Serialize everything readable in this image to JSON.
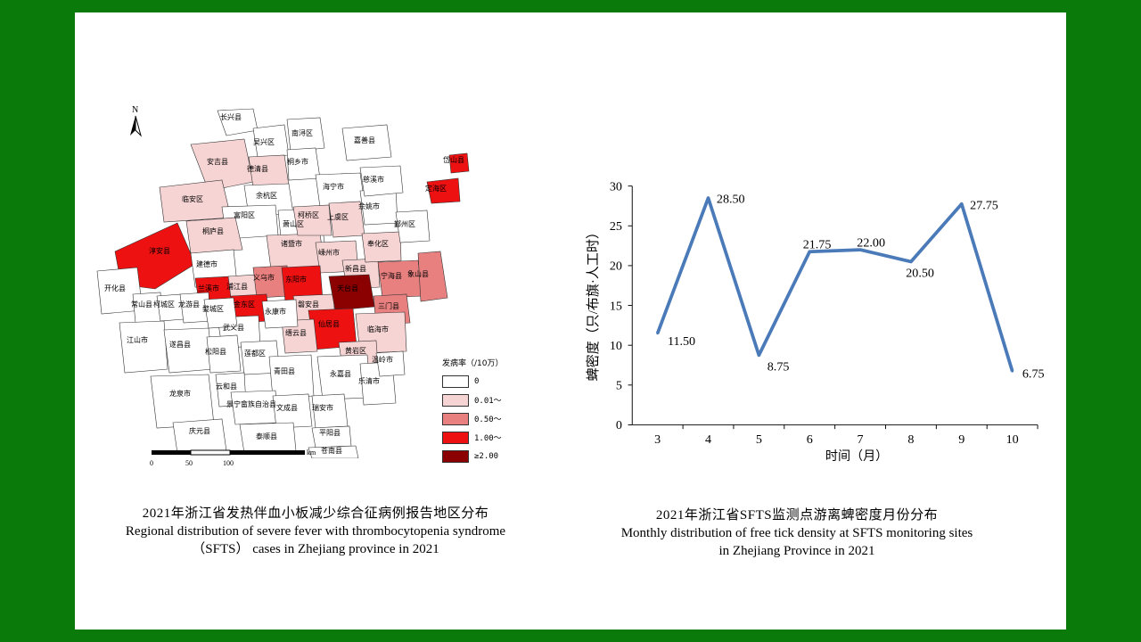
{
  "map": {
    "legend_title": "发病率（/10万）",
    "legend": [
      {
        "label": "0",
        "color": "#ffffff"
      },
      {
        "label": "0.01～",
        "color": "#f7d4d4"
      },
      {
        "label": "0.50～",
        "color": "#e88080"
      },
      {
        "label": "1.00～",
        "color": "#ee1111"
      },
      {
        "label": "≥2.00",
        "color": "#8b0000"
      }
    ],
    "scale_unit": "km",
    "scale_ticks": [
      "0",
      "50",
      "100"
    ],
    "north_label": "N",
    "caption_zh": "2021年浙江省发热伴血小板减少综合征病例报告地区分布",
    "caption_en": "Regional distribution of severe fever with thrombocytopenia syndrome\n（SFTS） cases in Zhejiang province in 2021",
    "regions": [
      {
        "name": "长兴县",
        "rate": "0"
      },
      {
        "name": "吴兴区",
        "rate": "0"
      },
      {
        "name": "南浔区",
        "rate": "0"
      },
      {
        "name": "嘉善县",
        "rate": "0"
      },
      {
        "name": "安吉县",
        "rate": "0.01～"
      },
      {
        "name": "德清县",
        "rate": "0.01～"
      },
      {
        "name": "桐乡市",
        "rate": "0"
      },
      {
        "name": "海宁市",
        "rate": "0"
      },
      {
        "name": "临安区",
        "rate": "0.01～"
      },
      {
        "name": "余杭区",
        "rate": "0"
      },
      {
        "name": "富阳区",
        "rate": "0"
      },
      {
        "name": "萧山区",
        "rate": "0"
      },
      {
        "name": "桐庐县",
        "rate": "0.01～"
      },
      {
        "name": "淳安县",
        "rate": "1.00～"
      },
      {
        "name": "建德市",
        "rate": "0"
      },
      {
        "name": "诸暨市",
        "rate": "0.01～"
      },
      {
        "name": "柯桥区",
        "rate": "0.01～"
      },
      {
        "name": "上虞区",
        "rate": "0.01～"
      },
      {
        "name": "嵊州市",
        "rate": "0.01～"
      },
      {
        "name": "新昌县",
        "rate": "0.01～"
      },
      {
        "name": "余姚市",
        "rate": "0"
      },
      {
        "name": "慈溪市",
        "rate": "0"
      },
      {
        "name": "奉化区",
        "rate": "0.01～"
      },
      {
        "name": "鄞州区",
        "rate": "0"
      },
      {
        "name": "宁海县",
        "rate": "0.50～"
      },
      {
        "name": "象山县",
        "rate": "0.50～"
      },
      {
        "name": "定海区",
        "rate": "1.00～"
      },
      {
        "name": "岱山县",
        "rate": "1.00～"
      },
      {
        "name": "兰溪市",
        "rate": "1.00～"
      },
      {
        "name": "浦江县",
        "rate": "0.01～"
      },
      {
        "name": "义乌市",
        "rate": "0.50～"
      },
      {
        "name": "金东区",
        "rate": "1.00～"
      },
      {
        "name": "东阳市",
        "rate": "1.00～"
      },
      {
        "name": "磐安县",
        "rate": "0.01～"
      },
      {
        "name": "天台县",
        "rate": "≥2.00"
      },
      {
        "name": "三门县",
        "rate": "0.50～"
      },
      {
        "name": "临海市",
        "rate": "0.01～"
      },
      {
        "name": "仙居县",
        "rate": "1.00～"
      },
      {
        "name": "缙云县",
        "rate": "0.01～"
      },
      {
        "name": "黄岩区",
        "rate": "0.01～"
      },
      {
        "name": "永康市",
        "rate": "0"
      },
      {
        "name": "武义县",
        "rate": "0"
      },
      {
        "name": "开化县",
        "rate": "0"
      },
      {
        "name": "常山县",
        "rate": "0"
      },
      {
        "name": "柯城区",
        "rate": "0"
      },
      {
        "name": "龙游县",
        "rate": "0"
      },
      {
        "name": "婺城区",
        "rate": "0"
      },
      {
        "name": "江山市",
        "rate": "0"
      },
      {
        "name": "遂昌县",
        "rate": "0"
      },
      {
        "name": "松阳县",
        "rate": "0"
      },
      {
        "name": "莲都区",
        "rate": "0"
      },
      {
        "name": "青田县",
        "rate": "0"
      },
      {
        "name": "永嘉县",
        "rate": "0"
      },
      {
        "name": "乐清市",
        "rate": "0"
      },
      {
        "name": "龙泉市",
        "rate": "0"
      },
      {
        "name": "云和县",
        "rate": "0"
      },
      {
        "name": "景宁畲族自治县",
        "rate": "0"
      },
      {
        "name": "文成县",
        "rate": "0"
      },
      {
        "name": "瑞安市",
        "rate": "0"
      },
      {
        "name": "庆元县",
        "rate": "0"
      },
      {
        "name": "泰顺县",
        "rate": "0"
      },
      {
        "name": "平阳县",
        "rate": "0"
      },
      {
        "name": "苍南县",
        "rate": "0"
      },
      {
        "name": "温岭市",
        "rate": "0"
      }
    ]
  },
  "chart_data": {
    "type": "line",
    "title": "2021年浙江省SFTS监测点游离蜱密度月份分布",
    "subtitle": "Monthly distribution of free tick density at SFTS monitoring sites\nin Zhejiang Province in 2021",
    "xlabel": "时间（月）",
    "ylabel": "蜱密度（只/布旗·人工时）",
    "categories": [
      "3",
      "4",
      "5",
      "6",
      "7",
      "8",
      "9",
      "10"
    ],
    "series": [
      {
        "values": [
          11.5,
          28.5,
          8.75,
          21.75,
          22.0,
          20.5,
          27.75,
          6.75
        ],
        "labels": [
          "11.50",
          "28.50",
          "8.75",
          "21.75",
          "22.00",
          "20.50",
          "27.75",
          "6.75"
        ]
      }
    ],
    "ylim": [
      0,
      30
    ],
    "yticks": [
      "0",
      "5",
      "10",
      "15",
      "20",
      "25",
      "30"
    ],
    "grid": false,
    "line_color": "#4a7ab8"
  }
}
